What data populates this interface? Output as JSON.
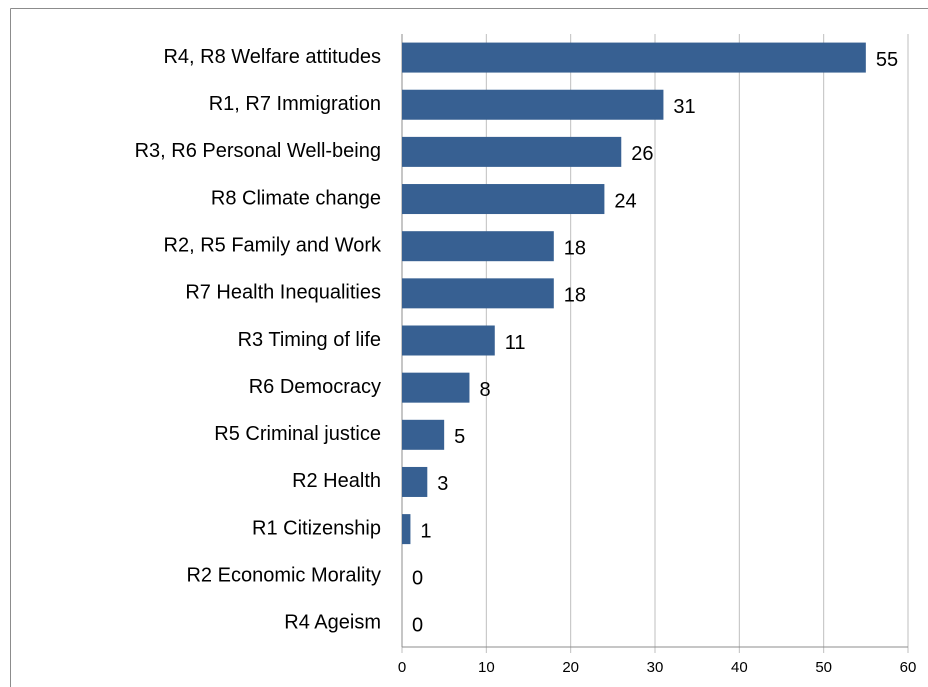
{
  "chart_data": {
    "type": "barh",
    "categories": [
      "R4, R8 Welfare attitudes",
      "R1, R7 Immigration",
      "R3, R6 Personal Well-being",
      "R8 Climate change",
      "R2, R5 Family and Work",
      "R7 Health Inequalities",
      "R3 Timing of life",
      "R6 Democracy",
      "R5 Criminal justice",
      "R2 Health",
      "R1 Citizenship",
      "R2 Economic Morality",
      "R4 Ageism"
    ],
    "values": [
      55,
      31,
      26,
      24,
      18,
      18,
      11,
      8,
      5,
      3,
      1,
      0,
      0
    ],
    "color": "#376092",
    "xlim": [
      0,
      60
    ],
    "xticks": [
      0,
      10,
      20,
      30,
      40,
      50,
      60
    ],
    "grid": true
  }
}
